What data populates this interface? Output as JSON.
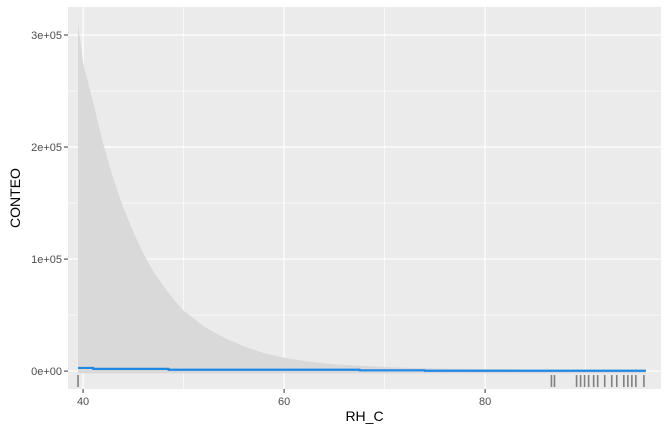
{
  "chart_data": {
    "type": "line",
    "title": "",
    "xlabel": "RH_C",
    "ylabel": "CONTEO",
    "xlim": [
      38.5,
      97.5
    ],
    "ylim": [
      -16000,
      325000
    ],
    "x_ticks": [
      40,
      60,
      80
    ],
    "x_tick_labels": [
      "40",
      "60",
      "80"
    ],
    "y_ticks": [
      0,
      100000,
      200000,
      300000
    ],
    "y_tick_labels": [
      "0e+00",
      "1e+05",
      "2e+05",
      "3e+05"
    ],
    "grid": true,
    "legend": "none",
    "colors": {
      "panel": "#ebebeb",
      "grid": "#ffffff",
      "line": "#1e88e5",
      "ribbon": "#d9d9d9",
      "rug": "#808080"
    },
    "series": [
      {
        "x": [
          39.5,
          41,
          41.01,
          48.5,
          48.51,
          67.5,
          67.51,
          74,
          74.01,
          96
        ],
        "y": [
          2800,
          2800,
          2000,
          2000,
          1200,
          1200,
          700,
          700,
          300,
          300
        ]
      }
    ],
    "ribbon": {
      "x": [
        39.5,
        40,
        41,
        42,
        43,
        44,
        45,
        46,
        47,
        48,
        49,
        50,
        52,
        54,
        56,
        58,
        60,
        62,
        65,
        68,
        72,
        76,
        80,
        85,
        90,
        96
      ],
      "upper": [
        310000,
        275000,
        240000,
        203000,
        172000,
        146000,
        124000,
        105000,
        89000,
        76000,
        64000,
        54000,
        40000,
        30000,
        22000,
        16000,
        12000,
        9000,
        6000,
        4500,
        3000,
        2200,
        1700,
        1200,
        800,
        500
      ],
      "lower": [
        -2000,
        -2000,
        -2000,
        -2000,
        -2000,
        -2000,
        -2000,
        -2000,
        -2000,
        -2000,
        -2000,
        -2000,
        -2000,
        -2000,
        -2000,
        -2000,
        -2000,
        -2000,
        -2000,
        -2000,
        -2000,
        -2000,
        -2000,
        -2000,
        -2000,
        -2000
      ]
    },
    "rug_x": [
      39.5,
      86.6,
      86.9,
      89.1,
      89.5,
      89.9,
      90.3,
      90.8,
      91.2,
      91.9,
      92.6,
      93.1,
      93.8,
      94.2,
      94.6,
      95.0,
      95.8
    ]
  }
}
